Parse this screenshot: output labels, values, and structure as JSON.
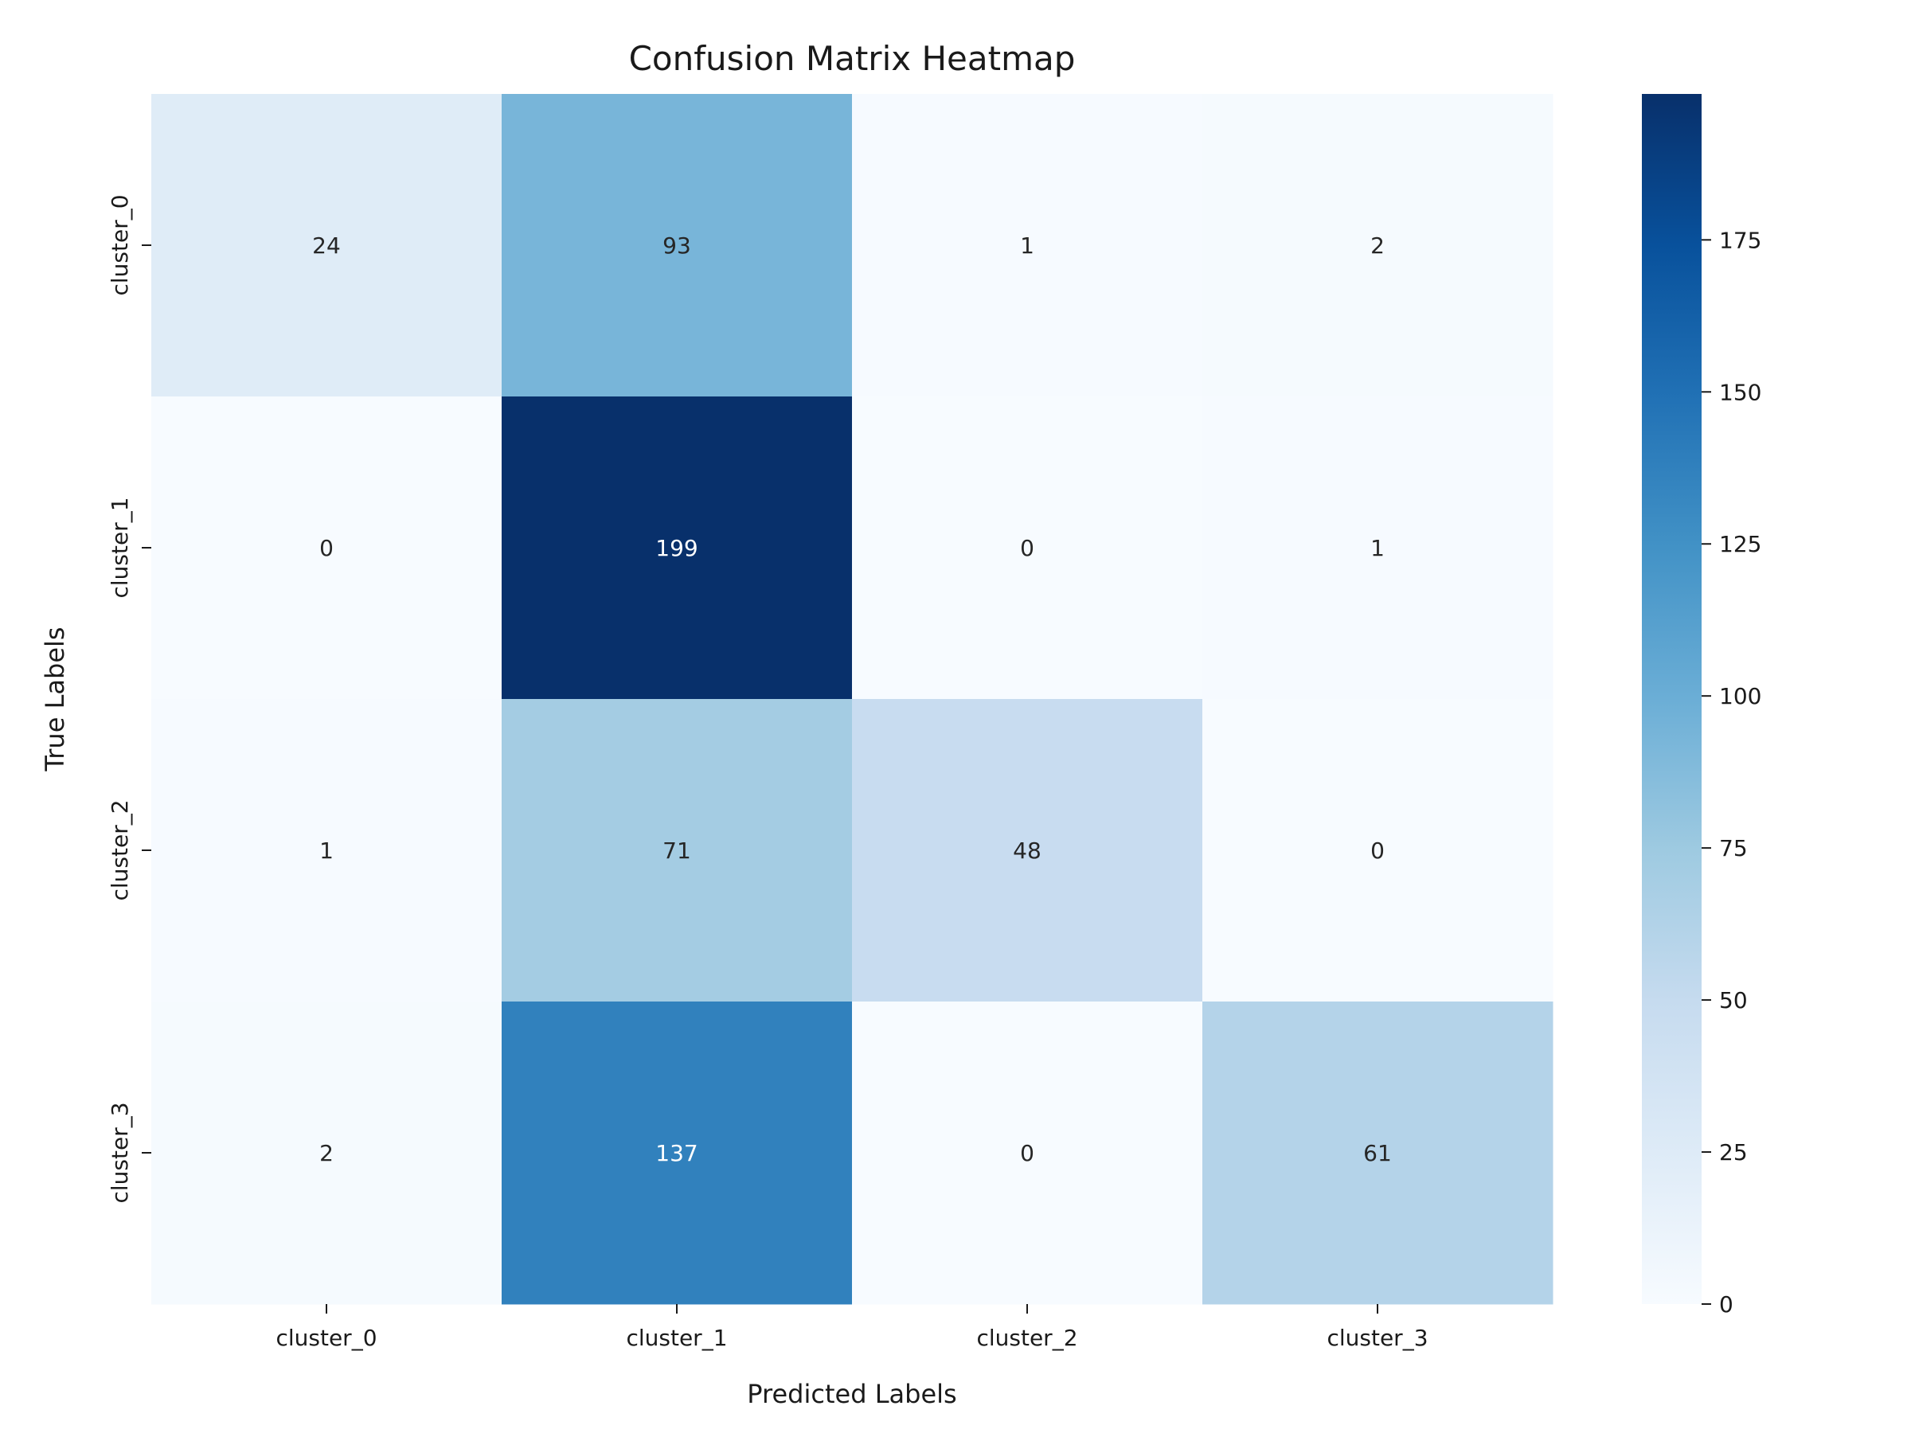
{
  "chart_data": {
    "type": "heatmap",
    "title": "Confusion Matrix Heatmap",
    "xlabel": "Predicted Labels",
    "ylabel": "True Labels",
    "x_categories": [
      "cluster_0",
      "cluster_1",
      "cluster_2",
      "cluster_3"
    ],
    "y_categories": [
      "cluster_0",
      "cluster_1",
      "cluster_2",
      "cluster_3"
    ],
    "values": [
      [
        24,
        93,
        1,
        2
      ],
      [
        0,
        199,
        0,
        1
      ],
      [
        1,
        71,
        48,
        0
      ],
      [
        2,
        137,
        0,
        61
      ]
    ],
    "colormap": "Blues",
    "colorbar": {
      "range": [
        0,
        199
      ],
      "ticks": [
        0,
        25,
        50,
        75,
        100,
        125,
        150,
        175
      ]
    },
    "colors": {
      "min": "#f7fbff",
      "max": "#08306b",
      "text_dark": "#262626",
      "text_light": "#ffffff"
    }
  }
}
